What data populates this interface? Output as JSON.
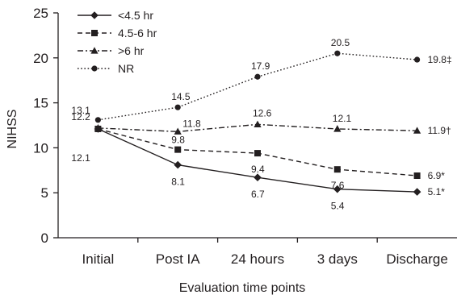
{
  "chart_data": {
    "type": "line",
    "title": "",
    "xlabel": "Evaluation time points",
    "ylabel": "NIHSS",
    "categories": [
      "Initial",
      "Post IA",
      "24 hours",
      "3 days",
      "Discharge"
    ],
    "ylim": [
      0,
      25
    ],
    "yticks": [
      0,
      5,
      10,
      15,
      20,
      25
    ],
    "grid": false,
    "legend_position": "top-left",
    "series": [
      {
        "name": "<4.5 hr",
        "marker": "diamond",
        "line_style": "solid",
        "values": [
          12.1,
          8.1,
          6.7,
          5.4,
          5.1
        ],
        "labels": [
          "12.1",
          "8.1",
          "6.7",
          "5.4",
          "5.1*"
        ]
      },
      {
        "name": "4.5-6 hr",
        "marker": "square",
        "line_style": "dashed",
        "values": [
          12.1,
          9.8,
          9.4,
          7.6,
          6.9
        ],
        "labels": [
          "",
          "9.8",
          "9.4",
          "7.6",
          "6.9*"
        ]
      },
      {
        "name": ">6 hr",
        "marker": "triangle",
        "line_style": "dash-dot",
        "values": [
          12.2,
          11.8,
          12.6,
          12.1,
          11.9
        ],
        "labels": [
          "12.2",
          "11.8",
          "12.6",
          "12.1",
          "11.9†"
        ]
      },
      {
        "name": "NR",
        "marker": "circle",
        "line_style": "dotted",
        "values": [
          13.1,
          14.5,
          17.9,
          20.5,
          19.8
        ],
        "labels": [
          "13.1",
          "14.5",
          "17.9",
          "20.5",
          "19.8‡"
        ]
      }
    ],
    "colors": {
      "ink": "#231f20"
    }
  }
}
